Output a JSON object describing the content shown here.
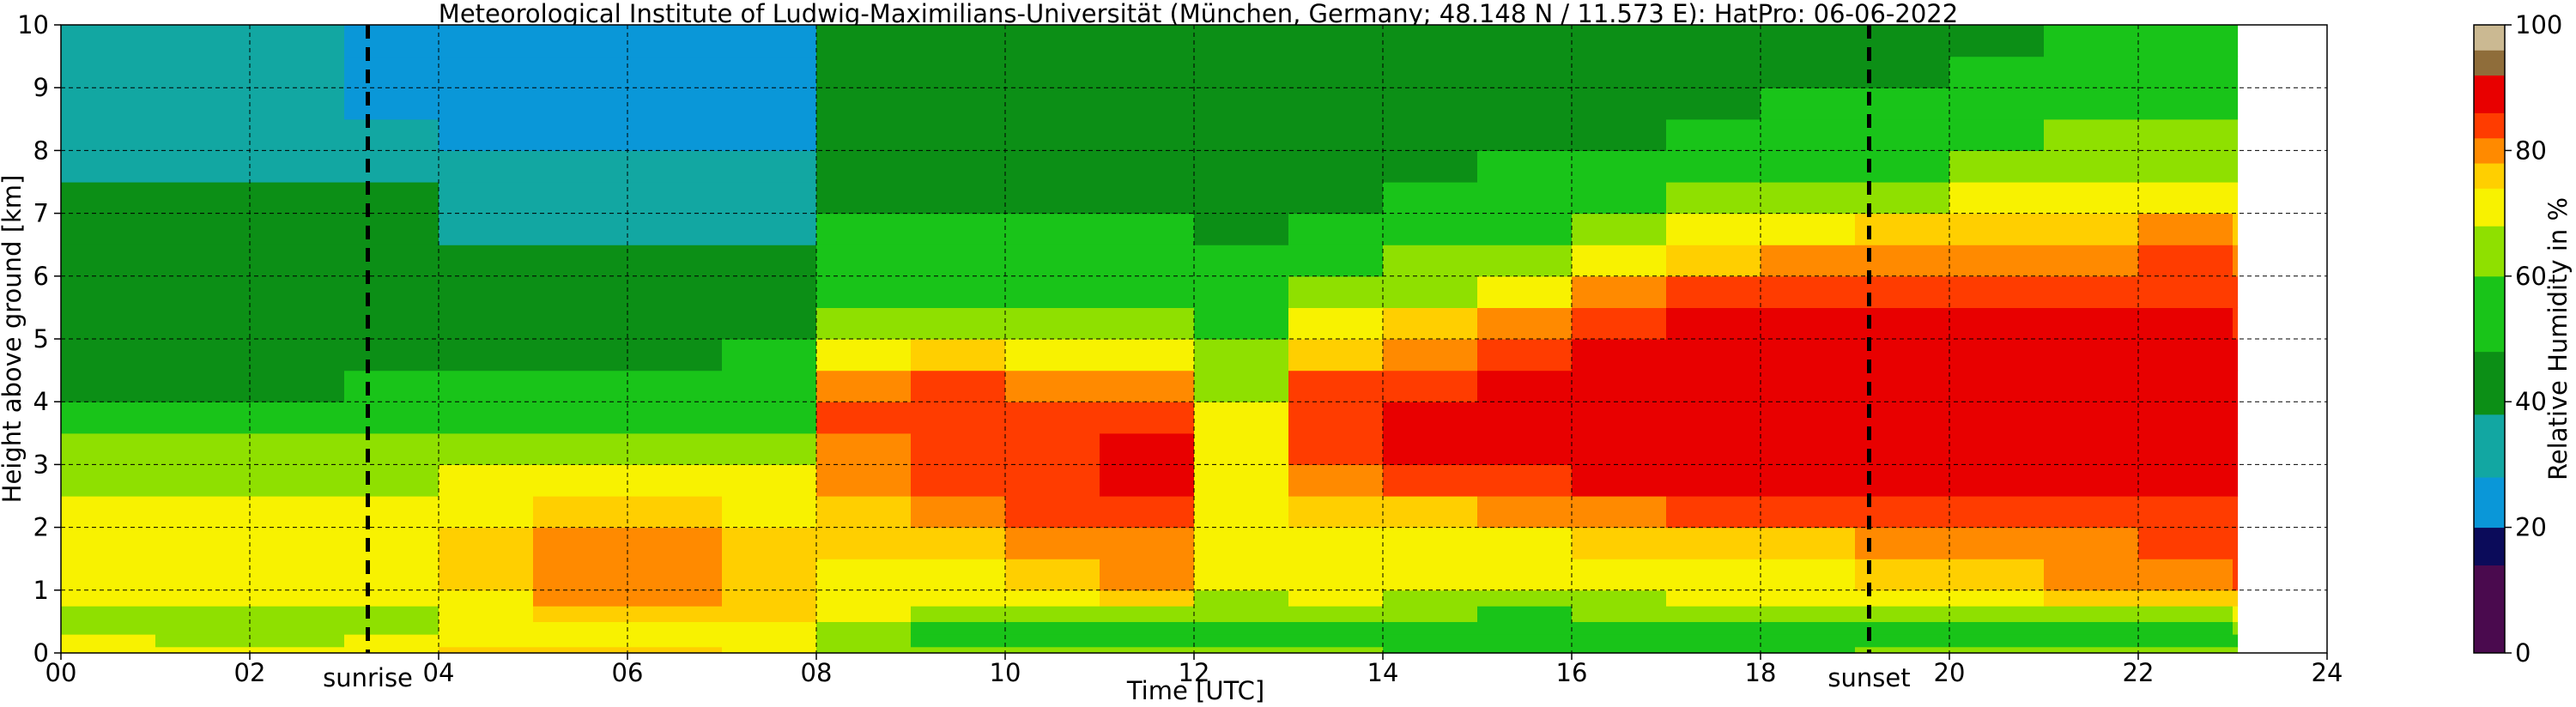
{
  "chart_data": {
    "type": "heatmap",
    "title": "Meteorological Institute of Ludwig-Maximilians-Universität (München, Germany; 48.148 N / 11.573 E):    HatPro: 06-06-2022",
    "xlabel": "Time [UTC]",
    "ylabel": "Height above ground [km]",
    "colorbar_label": "Relative Humidity in %",
    "xlim": [
      0,
      24
    ],
    "ylim": [
      0,
      10
    ],
    "x_ticks": [
      0,
      2,
      4,
      6,
      8,
      10,
      12,
      14,
      16,
      18,
      20,
      22,
      24
    ],
    "x_tick_labels": [
      "00",
      "02",
      "04",
      "06",
      "08",
      "10",
      "12",
      "14",
      "16",
      "18",
      "20",
      "22",
      "24"
    ],
    "y_ticks": [
      0,
      1,
      2,
      3,
      4,
      5,
      6,
      7,
      8,
      9,
      10
    ],
    "y_tick_labels": [
      "0",
      "1",
      "2",
      "3",
      "4",
      "5",
      "6",
      "7",
      "8",
      "9",
      "10"
    ],
    "colorbar_ticks": [
      0,
      20,
      40,
      60,
      80,
      100
    ],
    "colorbar_tick_labels": [
      "0",
      "20",
      "40",
      "60",
      "80",
      "100"
    ],
    "grid": true,
    "data_end_hour": 23.05,
    "height_levels_km": [
      0,
      0.1,
      0.3,
      0.5,
      0.75,
      1.0,
      1.5,
      2.0,
      2.5,
      3.0,
      3.5,
      4.0,
      4.5,
      5.0,
      5.5,
      6.0,
      6.5,
      7.0,
      7.5,
      8.0,
      8.5,
      9.0,
      9.5,
      10.0
    ],
    "profiles": [
      {
        "time_h": 0,
        "rh": [
          72,
          68,
          64,
          62,
          68,
          70,
          70,
          68,
          66,
          62,
          52,
          45,
          44,
          44,
          44,
          44,
          43,
          40,
          35,
          30,
          28,
          28,
          28,
          28
        ]
      },
      {
        "time_h": 1,
        "rh": [
          70,
          66,
          62,
          62,
          68,
          70,
          70,
          68,
          66,
          62,
          54,
          45,
          42,
          43,
          44,
          46,
          44,
          40,
          36,
          32,
          28,
          28,
          28,
          28
        ]
      },
      {
        "time_h": 2,
        "rh": [
          70,
          66,
          62,
          62,
          68,
          70,
          70,
          68,
          66,
          62,
          55,
          46,
          44,
          46,
          46,
          46,
          44,
          40,
          34,
          30,
          28,
          28,
          28,
          28
        ]
      },
      {
        "time_h": 3,
        "rh": [
          72,
          68,
          65,
          66,
          70,
          72,
          72,
          70,
          66,
          62,
          55,
          48,
          45,
          45,
          44,
          43,
          42,
          38,
          32,
          28,
          26,
          25,
          25,
          25
        ]
      },
      {
        "time_h": 4,
        "rh": [
          74,
          70,
          68,
          70,
          72,
          74,
          74,
          72,
          68,
          62,
          55,
          48,
          44,
          42,
          40,
          38,
          36,
          32,
          28,
          26,
          25,
          24,
          24,
          24
        ]
      },
      {
        "time_h": 5,
        "rh": [
          75,
          72,
          70,
          74,
          78,
          80,
          78,
          74,
          70,
          64,
          57,
          50,
          45,
          42,
          40,
          38,
          36,
          32,
          28,
          26,
          24,
          22,
          22,
          22
        ]
      },
      {
        "time_h": 6,
        "rh": [
          74,
          72,
          70,
          75,
          80,
          80,
          78,
          75,
          70,
          64,
          58,
          52,
          46,
          42,
          40,
          38,
          36,
          32,
          28,
          26,
          24,
          22,
          22,
          22
        ]
      },
      {
        "time_h": 7,
        "rh": [
          72,
          70,
          70,
          74,
          76,
          76,
          75,
          72,
          70,
          64,
          58,
          52,
          48,
          44,
          40,
          38,
          36,
          32,
          28,
          26,
          25,
          24,
          24,
          24
        ]
      },
      {
        "time_h": 8,
        "rh": [
          66,
          62,
          64,
          70,
          72,
          72,
          74,
          76,
          78,
          80,
          82,
          80,
          72,
          64,
          58,
          52,
          48,
          45,
          43,
          42,
          41,
          41,
          41,
          41
        ]
      },
      {
        "time_h": 9,
        "rh": [
          64,
          58,
          58,
          66,
          70,
          72,
          74,
          78,
          82,
          84,
          84,
          82,
          74,
          66,
          58,
          52,
          48,
          45,
          43,
          42,
          42,
          42,
          42,
          42
        ]
      },
      {
        "time_h": 10,
        "rh": [
          62,
          56,
          56,
          64,
          72,
          74,
          78,
          82,
          84,
          84,
          82,
          78,
          70,
          64,
          56,
          52,
          48,
          46,
          44,
          42,
          42,
          42,
          42,
          42
        ]
      },
      {
        "time_h": 11,
        "rh": [
          62,
          55,
          56,
          66,
          74,
          78,
          80,
          84,
          86,
          86,
          84,
          80,
          72,
          64,
          58,
          52,
          48,
          46,
          44,
          42,
          42,
          42,
          42,
          42
        ]
      },
      {
        "time_h": 12,
        "rh": [
          60,
          52,
          52,
          60,
          66,
          68,
          70,
          72,
          72,
          70,
          68,
          64,
          60,
          56,
          52,
          48,
          46,
          44,
          42,
          40,
          40,
          42,
          42,
          42
        ]
      },
      {
        "time_h": 13,
        "rh": [
          60,
          52,
          54,
          62,
          68,
          70,
          72,
          76,
          80,
          84,
          84,
          82,
          76,
          68,
          62,
          56,
          50,
          46,
          44,
          42,
          42,
          42,
          42,
          42
        ]
      },
      {
        "time_h": 14,
        "rh": [
          58,
          50,
          52,
          60,
          66,
          70,
          72,
          76,
          82,
          86,
          86,
          84,
          80,
          74,
          66,
          60,
          54,
          50,
          46,
          44,
          43,
          42,
          42,
          42
        ]
      },
      {
        "time_h": 15,
        "rh": [
          56,
          48,
          50,
          58,
          64,
          68,
          72,
          78,
          84,
          88,
          88,
          86,
          84,
          80,
          72,
          66,
          58,
          52,
          48,
          45,
          44,
          43,
          43,
          43
        ]
      },
      {
        "time_h": 16,
        "rh": [
          56,
          48,
          50,
          60,
          66,
          70,
          74,
          80,
          86,
          88,
          88,
          88,
          86,
          84,
          78,
          72,
          64,
          56,
          50,
          46,
          44,
          43,
          43,
          43
        ]
      },
      {
        "time_h": 17,
        "rh": [
          58,
          50,
          54,
          62,
          68,
          72,
          76,
          82,
          86,
          88,
          88,
          88,
          88,
          86,
          82,
          76,
          68,
          60,
          54,
          50,
          46,
          44,
          44,
          44
        ]
      },
      {
        "time_h": 18,
        "rh": [
          58,
          50,
          54,
          62,
          68,
          72,
          76,
          82,
          86,
          88,
          88,
          88,
          88,
          86,
          84,
          78,
          70,
          62,
          56,
          52,
          48,
          46,
          45,
          45
        ]
      },
      {
        "time_h": 19,
        "rh": [
          60,
          52,
          56,
          64,
          70,
          74,
          78,
          82,
          86,
          88,
          88,
          88,
          88,
          86,
          84,
          80,
          74,
          66,
          58,
          54,
          50,
          46,
          45,
          45
        ]
      },
      {
        "time_h": 20,
        "rh": [
          62,
          54,
          56,
          64,
          72,
          76,
          78,
          82,
          86,
          88,
          88,
          88,
          88,
          86,
          84,
          80,
          74,
          68,
          60,
          56,
          52,
          48,
          46,
          46
        ]
      },
      {
        "time_h": 21,
        "rh": [
          62,
          55,
          58,
          66,
          74,
          78,
          80,
          82,
          86,
          88,
          88,
          88,
          88,
          86,
          84,
          80,
          76,
          70,
          64,
          60,
          55,
          50,
          48,
          48
        ]
      },
      {
        "time_h": 22,
        "rh": [
          64,
          56,
          58,
          66,
          74,
          80,
          84,
          84,
          86,
          88,
          88,
          88,
          88,
          86,
          84,
          82,
          78,
          72,
          66,
          62,
          58,
          54,
          50,
          48
        ]
      },
      {
        "time_h": 23,
        "rh": [
          66,
          58,
          60,
          68,
          76,
          82,
          84,
          84,
          86,
          88,
          88,
          88,
          86,
          84,
          82,
          80,
          76,
          72,
          66,
          62,
          58,
          54,
          50,
          48
        ]
      }
    ],
    "vlines": [
      {
        "time_h": 3.25,
        "label": "sunrise"
      },
      {
        "time_h": 19.15,
        "label": "sunset"
      }
    ],
    "colormap": [
      {
        "from": 0,
        "to": 14,
        "color": "#4a0a4e"
      },
      {
        "from": 14,
        "to": 20,
        "color": "#0b0b5a"
      },
      {
        "from": 20,
        "to": 28,
        "color": "#0a97d8"
      },
      {
        "from": 28,
        "to": 38,
        "color": "#12a7a2"
      },
      {
        "from": 38,
        "to": 48,
        "color": "#0c8f16"
      },
      {
        "from": 48,
        "to": 60,
        "color": "#19c419"
      },
      {
        "from": 60,
        "to": 68,
        "color": "#8fe000"
      },
      {
        "from": 68,
        "to": 74,
        "color": "#f8f200"
      },
      {
        "from": 74,
        "to": 78,
        "color": "#ffcf00"
      },
      {
        "from": 78,
        "to": 82,
        "color": "#ff8a00"
      },
      {
        "from": 82,
        "to": 86,
        "color": "#ff3c00"
      },
      {
        "from": 86,
        "to": 92,
        "color": "#e80000"
      },
      {
        "from": 92,
        "to": 96,
        "color": "#8f6d3a"
      },
      {
        "from": 96,
        "to": 100,
        "color": "#cbb992"
      }
    ]
  }
}
